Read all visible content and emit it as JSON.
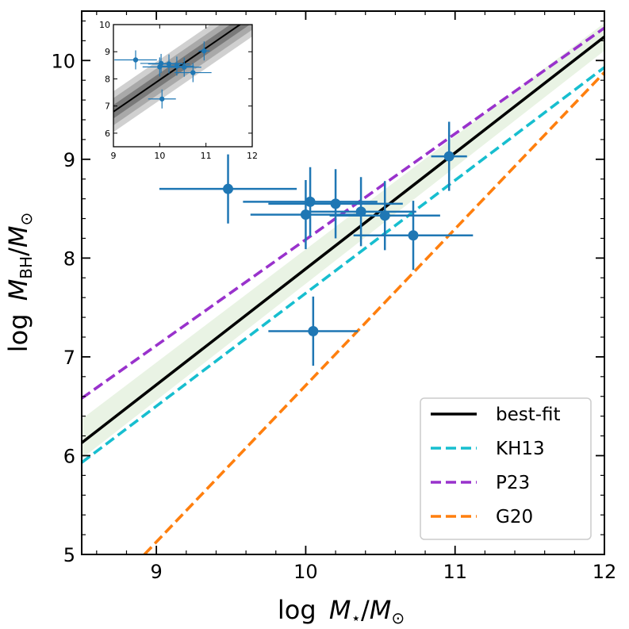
{
  "chart_data": {
    "type": "scatter",
    "xlabel_parts": {
      "prefix": "log",
      "var": "M",
      "sub": "⋆",
      "sep": "/",
      "var2": "M",
      "sub2": "⊙"
    },
    "ylabel_parts": {
      "prefix": "log",
      "var": "M",
      "sub": "BH",
      "sep": "/",
      "var2": "M",
      "sub2": "⊙"
    },
    "xlim": [
      8.5,
      12
    ],
    "ylim": [
      5,
      10.5
    ],
    "xticks": [
      9,
      10,
      11,
      12
    ],
    "yticks": [
      5,
      6,
      7,
      8,
      9,
      10
    ],
    "xtick_labels": [
      "9",
      "10",
      "11",
      "12"
    ],
    "ytick_labels": [
      "5",
      "6",
      "7",
      "8",
      "9",
      "10"
    ],
    "points": [
      {
        "x": 9.48,
        "y": 8.7,
        "xerr": 0.46,
        "yerr": 0.35
      },
      {
        "x": 10.0,
        "y": 8.44,
        "xerr": 0.37,
        "yerr": 0.35
      },
      {
        "x": 10.03,
        "y": 8.57,
        "xerr": 0.45,
        "yerr": 0.35
      },
      {
        "x": 10.2,
        "y": 8.55,
        "xerr": 0.45,
        "yerr": 0.35
      },
      {
        "x": 10.37,
        "y": 8.47,
        "xerr": 0.37,
        "yerr": 0.35
      },
      {
        "x": 10.53,
        "y": 8.43,
        "xerr": 0.37,
        "yerr": 0.35
      },
      {
        "x": 10.72,
        "y": 8.23,
        "xerr": 0.4,
        "yerr": 0.35
      },
      {
        "x": 10.05,
        "y": 7.26,
        "xerr": 0.3,
        "yerr": 0.35
      },
      {
        "x": 10.96,
        "y": 9.03,
        "xerr": 0.12,
        "yerr": 0.35
      }
    ],
    "lines": [
      {
        "name": "best-fit",
        "x": [
          8.5,
          12
        ],
        "y": [
          6.13,
          10.24
        ],
        "color": "#000000",
        "dashed": false
      },
      {
        "name": "KH13",
        "x": [
          8.5,
          12
        ],
        "y": [
          5.93,
          9.93
        ],
        "color": "#17becf",
        "dashed": true
      },
      {
        "name": "P23",
        "x": [
          8.5,
          12
        ],
        "y": [
          6.58,
          10.33
        ],
        "color": "#9932cc",
        "dashed": true
      },
      {
        "name": "G20",
        "x": [
          8.92,
          12
        ],
        "y": [
          5.0,
          9.88
        ],
        "color": "#ff7f0e",
        "dashed": true
      }
    ],
    "band": {
      "x": [
        8.5,
        12
      ],
      "upper": [
        6.37,
        10.38
      ],
      "lower": [
        5.97,
        10.1
      ],
      "color": "#e9f3e4"
    },
    "legend": {
      "position": "lower-right",
      "entries": [
        {
          "label": "best-fit",
          "color": "#000000",
          "dashed": false
        },
        {
          "label": "KH13",
          "color": "#17becf",
          "dashed": true
        },
        {
          "label": "P23",
          "color": "#9932cc",
          "dashed": true
        },
        {
          "label": "G20",
          "color": "#ff7f0e",
          "dashed": true
        }
      ]
    },
    "inset": {
      "position": "top-left",
      "xlim": [
        9,
        12
      ],
      "ylim": [
        5.5,
        10
      ],
      "xticks": [
        9,
        10,
        11,
        12
      ],
      "yticks": [
        6,
        7,
        8,
        9,
        10
      ],
      "xtick_labels": [
        "9",
        "10",
        "11",
        "12"
      ],
      "ytick_labels": [
        "6",
        "7",
        "8",
        "9",
        "10"
      ],
      "bestfit": {
        "x": [
          9,
          12
        ],
        "y": [
          6.79,
          10.31
        ]
      },
      "bands": [
        {
          "half_width": 0.75,
          "color": "#d0d0d0"
        },
        {
          "half_width": 0.5,
          "color": "#a9a9a9"
        },
        {
          "half_width": 0.25,
          "color": "#7a7a7a"
        }
      ]
    },
    "point_color": "#1f77b4"
  }
}
